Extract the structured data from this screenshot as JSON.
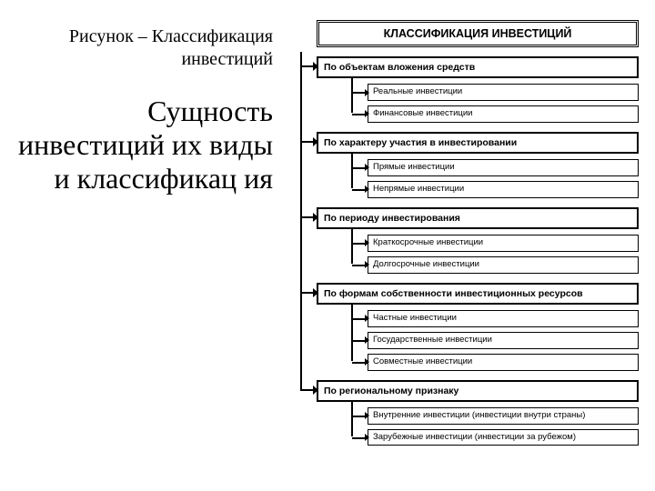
{
  "left": {
    "caption": "Рисунок – Классификация инвестиций",
    "title": "Сущность инвестиций их виды и классификац ия"
  },
  "diagram": {
    "root": "КЛАССИФИКАЦИЯ ИНВЕСТИЦИЙ",
    "categories": [
      {
        "label": "По объектам вложения средств",
        "items": [
          "Реальные инвестиции",
          "Финансовые инвестиции"
        ]
      },
      {
        "label": "По характеру участия в инвестировании",
        "items": [
          "Прямые инвестиции",
          "Непрямые инвестиции"
        ]
      },
      {
        "label": "По периоду инвестирования",
        "items": [
          "Краткосрочные инвестиции",
          "Долгосрочные инвестиции"
        ]
      },
      {
        "label": "По формам собственности инвестиционных ресурсов",
        "items": [
          "Частные инвестиции",
          "Государственные инвестиции",
          "Совместные инвестиции"
        ]
      },
      {
        "label": "По региональному признаку",
        "items": [
          "Внутренние инвестиции (инвестиции внутри страны)",
          "Зарубежные инвестиции (инвестиции за рубежом)"
        ]
      }
    ]
  },
  "style": {
    "bg": "#ffffff",
    "line": "#000000",
    "text": "#000000",
    "caption_fontsize": 20,
    "title_fontsize": 32,
    "root_fontsize": 12.5,
    "cat_fontsize": 10.5,
    "sub_fontsize": 9.5
  }
}
